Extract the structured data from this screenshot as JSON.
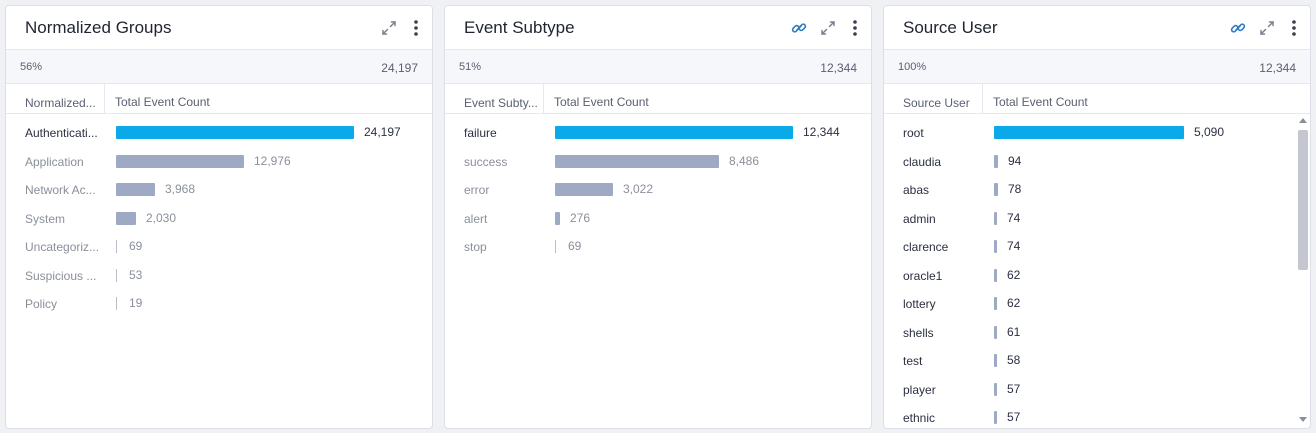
{
  "column_header": "Total Event Count",
  "colors": {
    "highlight": "#0aa9e8",
    "bar": "#9ea9c3",
    "thin": "#b8bdc9",
    "text_dark": "#2b3040",
    "text_muted": "#8a8f9b",
    "small_bar": "#0aa9e8"
  },
  "panels": [
    {
      "title": "Normalized Groups",
      "percent": "56%",
      "total": "24,197",
      "name_column": "Normalized...",
      "icons": [
        "expand-icon",
        "more-vertical-icon"
      ],
      "rows": [
        {
          "label": "Authenticati...",
          "value": 24197,
          "value_label": "24,197"
        },
        {
          "label": "Application",
          "value": 12976,
          "value_label": "12,976"
        },
        {
          "label": "Network Ac...",
          "value": 3968,
          "value_label": "3,968"
        },
        {
          "label": "System",
          "value": 2030,
          "value_label": "2,030"
        },
        {
          "label": "Uncategoriz...",
          "value": 69,
          "value_label": "69"
        },
        {
          "label": "Suspicious ...",
          "value": 53,
          "value_label": "53"
        },
        {
          "label": "Policy",
          "value": 19,
          "value_label": "19"
        }
      ]
    },
    {
      "title": "Event Subtype",
      "percent": "51%",
      "total": "12,344",
      "name_column": "Event Subty...",
      "icons": [
        "link-icon",
        "expand-icon",
        "more-vertical-icon"
      ],
      "rows": [
        {
          "label": "failure",
          "value": 12344,
          "value_label": "12,344"
        },
        {
          "label": "success",
          "value": 8486,
          "value_label": "8,486"
        },
        {
          "label": "error",
          "value": 3022,
          "value_label": "3,022"
        },
        {
          "label": "alert",
          "value": 276,
          "value_label": "276"
        },
        {
          "label": "stop",
          "value": 69,
          "value_label": "69"
        }
      ]
    },
    {
      "title": "Source User",
      "percent": "100%",
      "total": "12,344",
      "name_column": "Source User",
      "icons": [
        "link-icon",
        "expand-icon",
        "more-vertical-icon"
      ],
      "rows": [
        {
          "label": "root",
          "value": 5090,
          "value_label": "5,090"
        },
        {
          "label": "claudia",
          "value": 94,
          "value_label": "94"
        },
        {
          "label": "abas",
          "value": 78,
          "value_label": "78"
        },
        {
          "label": "admin",
          "value": 74,
          "value_label": "74"
        },
        {
          "label": "clarence",
          "value": 74,
          "value_label": "74"
        },
        {
          "label": "oracle1",
          "value": 62,
          "value_label": "62"
        },
        {
          "label": "lottery",
          "value": 62,
          "value_label": "62"
        },
        {
          "label": "shells",
          "value": 61,
          "value_label": "61"
        },
        {
          "label": "test",
          "value": 58,
          "value_label": "58"
        },
        {
          "label": "player",
          "value": 57,
          "value_label": "57"
        },
        {
          "label": "ethnic",
          "value": 57,
          "value_label": "57"
        }
      ]
    }
  ]
}
